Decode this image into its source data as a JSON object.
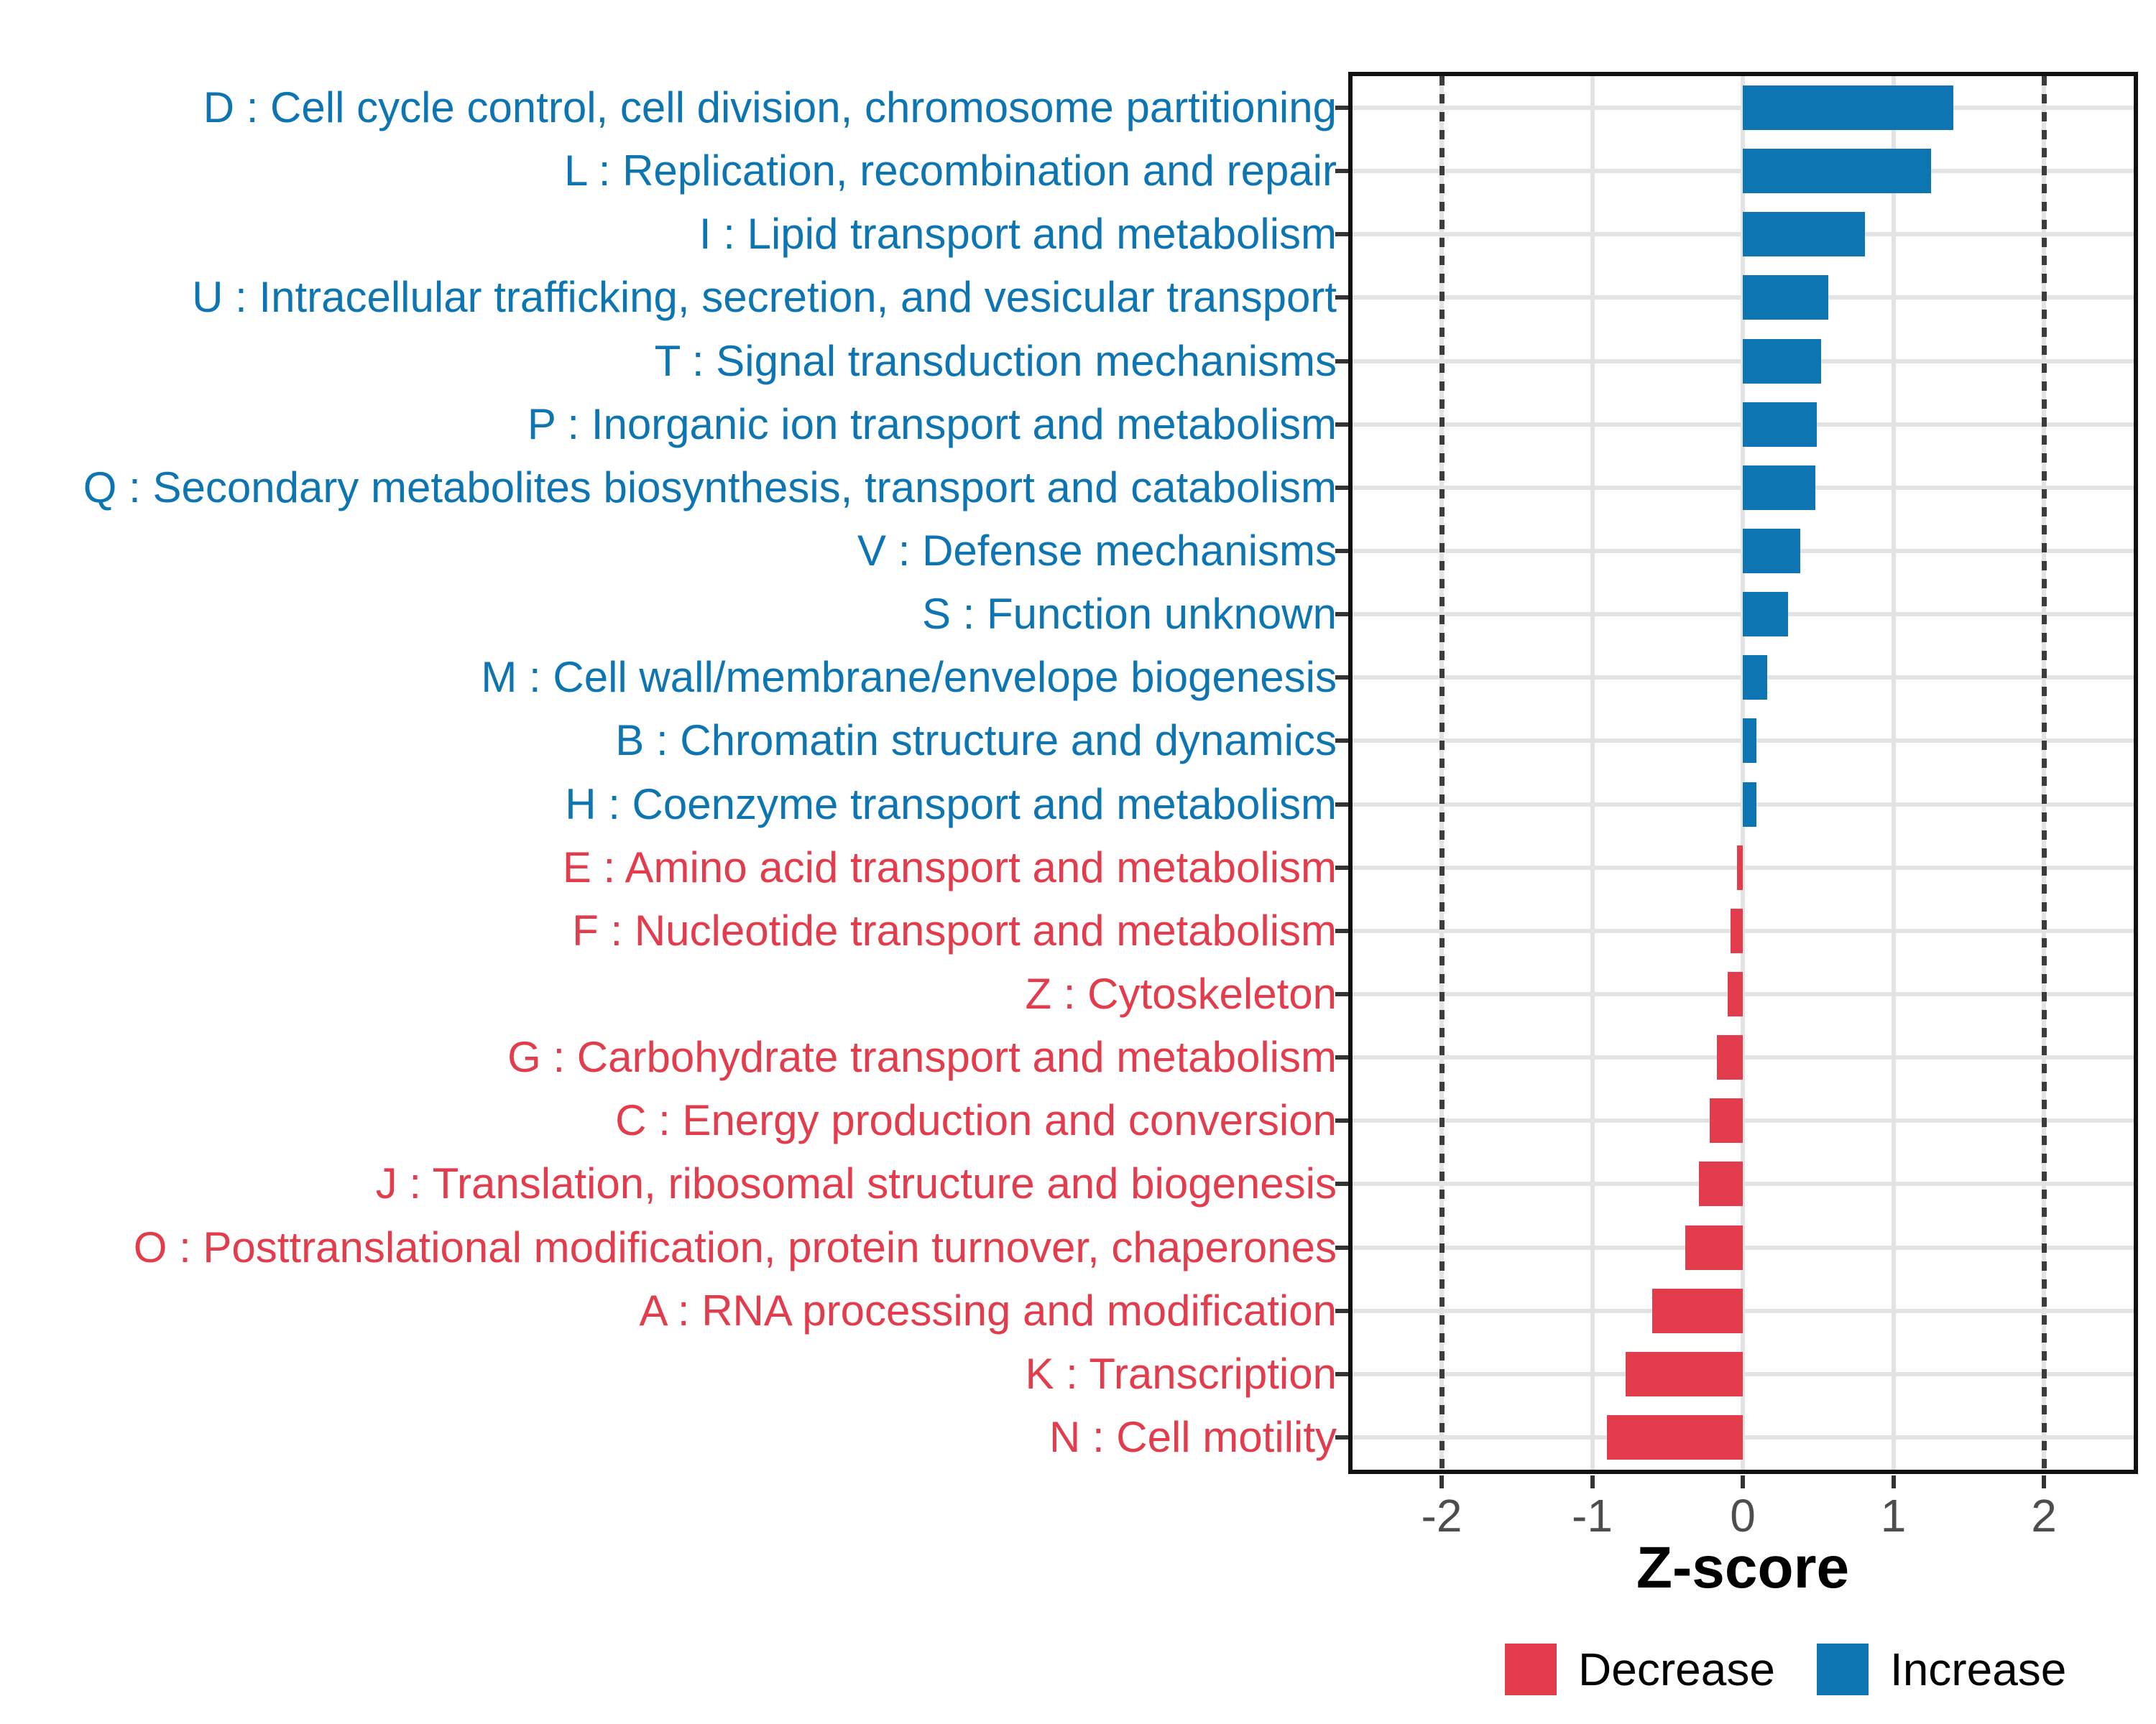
{
  "chart_data": {
    "type": "bar",
    "orientation": "horizontal",
    "xlabel": "Z-score",
    "ylabel": "",
    "xlim": [
      -2.62,
      2.62
    ],
    "x_ticks": [
      -2,
      -1,
      0,
      1,
      2
    ],
    "x_tick_labels": [
      "-2",
      "-1",
      "0",
      "1",
      "2"
    ],
    "dotted_vlines": [
      -2,
      2
    ],
    "grid": "major",
    "colors": {
      "increase": "#0d75b2",
      "decrease": "#e23c4d"
    },
    "rows": [
      {
        "label": "D : Cell cycle control, cell division, chromosome partitioning",
        "value": 1.4,
        "group": "Increase"
      },
      {
        "label": "L : Replication, recombination and repair",
        "value": 1.25,
        "group": "Increase"
      },
      {
        "label": "I : Lipid transport and metabolism",
        "value": 0.81,
        "group": "Increase"
      },
      {
        "label": "U : Intracellular trafficking, secretion, and vesicular transport",
        "value": 0.57,
        "group": "Increase"
      },
      {
        "label": "T : Signal transduction mechanisms",
        "value": 0.52,
        "group": "Increase"
      },
      {
        "label": "P : Inorganic ion transport and metabolism",
        "value": 0.49,
        "group": "Increase"
      },
      {
        "label": "Q : Secondary metabolites biosynthesis, transport and catabolism",
        "value": 0.48,
        "group": "Increase"
      },
      {
        "label": "V : Defense mechanisms",
        "value": 0.38,
        "group": "Increase"
      },
      {
        "label": "S : Function unknown",
        "value": 0.3,
        "group": "Increase"
      },
      {
        "label": "M : Cell wall/membrane/envelope biogenesis",
        "value": 0.16,
        "group": "Increase"
      },
      {
        "label": "B : Chromatin structure and dynamics",
        "value": 0.09,
        "group": "Increase"
      },
      {
        "label": "H : Coenzyme transport and metabolism",
        "value": 0.09,
        "group": "Increase"
      },
      {
        "label": "E : Amino acid transport and metabolism",
        "value": -0.04,
        "group": "Decrease"
      },
      {
        "label": "F : Nucleotide transport and metabolism",
        "value": -0.08,
        "group": "Decrease"
      },
      {
        "label": "Z : Cytoskeleton",
        "value": -0.1,
        "group": "Decrease"
      },
      {
        "label": "G : Carbohydrate transport and metabolism",
        "value": -0.17,
        "group": "Decrease"
      },
      {
        "label": "C : Energy production and conversion",
        "value": -0.22,
        "group": "Decrease"
      },
      {
        "label": "J : Translation, ribosomal structure and biogenesis",
        "value": -0.29,
        "group": "Decrease"
      },
      {
        "label": "O : Posttranslational modification, protein turnover, chaperones",
        "value": -0.38,
        "group": "Decrease"
      },
      {
        "label": "A : RNA processing and modification",
        "value": -0.6,
        "group": "Decrease"
      },
      {
        "label": "K : Transcription",
        "value": -0.78,
        "group": "Decrease"
      },
      {
        "label": "N : Cell motility",
        "value": -0.9,
        "group": "Decrease"
      }
    ],
    "legend": {
      "position": "bottom",
      "entries": [
        {
          "label": "Decrease",
          "color": "#e23c4d"
        },
        {
          "label": "Increase",
          "color": "#0d75b2"
        }
      ]
    }
  }
}
